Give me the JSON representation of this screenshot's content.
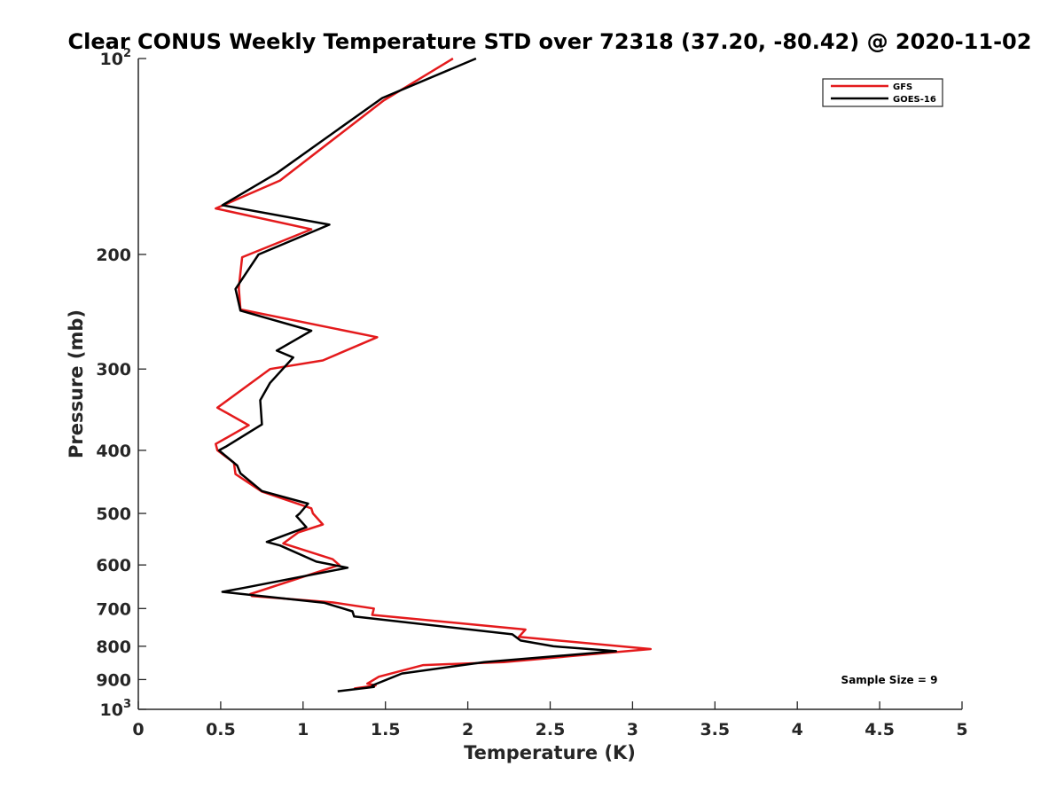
{
  "chart_data": {
    "type": "line",
    "title": "Clear CONUS Weekly Temperature STD over 72318 (37.20, -80.42) @ 2020-11-02",
    "xlabel": "Temperature (K)",
    "ylabel": "Pressure (mb)",
    "xlim": [
      0,
      5
    ],
    "ylim": [
      100,
      1000
    ],
    "y_scale": "log",
    "y_reversed": true,
    "x_ticks": [
      "0",
      "0.5",
      "1",
      "1.5",
      "2",
      "2.5",
      "3",
      "3.5",
      "4",
      "4.5",
      "5"
    ],
    "y_ticks": [
      {
        "value": 100,
        "label": "10",
        "exp": "2"
      },
      {
        "value": 200,
        "label": "200"
      },
      {
        "value": 300,
        "label": "300"
      },
      {
        "value": 400,
        "label": "400"
      },
      {
        "value": 500,
        "label": "500"
      },
      {
        "value": 600,
        "label": "600"
      },
      {
        "value": 700,
        "label": "700"
      },
      {
        "value": 800,
        "label": "800"
      },
      {
        "value": 900,
        "label": "900"
      },
      {
        "value": 1000,
        "label": "10",
        "exp": "3"
      }
    ],
    "grid": false,
    "legend_position": "top-right",
    "annotation": "Sample Size = 9",
    "series": [
      {
        "name": "GFS",
        "color": "#e41a1c",
        "x": [
          1.91,
          1.49,
          0.86,
          0.47,
          1.05,
          0.63,
          0.61,
          0.62,
          1.45,
          1.12,
          0.8,
          0.48,
          0.67,
          0.47,
          0.48,
          0.58,
          0.59,
          0.75,
          1.05,
          1.06,
          1.12,
          0.97,
          0.88,
          1.18,
          1.22,
          0.68,
          0.69,
          1.18,
          1.43,
          1.42,
          2.35,
          2.31,
          3.11,
          2.22,
          1.73,
          1.46,
          1.39,
          1.44,
          1.31
        ],
        "y": [
          100,
          116,
          154,
          170,
          183,
          202,
          225,
          243,
          268,
          291,
          300,
          344,
          366,
          391,
          400,
          418,
          435,
          463,
          491,
          500,
          520,
          535,
          556,
          588,
          600,
          665,
          670,
          685,
          700,
          716,
          754,
          774,
          808,
          846,
          855,
          891,
          913,
          919,
          929
        ]
      },
      {
        "name": "GOES-16",
        "color": "#000000",
        "x": [
          2.05,
          1.48,
          0.84,
          0.51,
          1.16,
          0.73,
          0.59,
          0.62,
          1.05,
          0.84,
          0.94,
          0.8,
          0.74,
          0.75,
          0.53,
          0.49,
          0.6,
          0.62,
          0.75,
          1.03,
          0.98,
          0.96,
          1.02,
          0.78,
          0.86,
          1.08,
          1.27,
          0.65,
          0.51,
          1.13,
          1.3,
          1.31,
          2.27,
          2.32,
          2.52,
          2.9,
          2.1,
          1.6,
          1.42,
          1.43,
          1.21
        ],
        "y": [
          100,
          115,
          150,
          168,
          180,
          200,
          226,
          244,
          262,
          281,
          288,
          315,
          335,
          365,
          395,
          400,
          422,
          434,
          462,
          483,
          500,
          505,
          525,
          553,
          560,
          593,
          606,
          650,
          660,
          686,
          707,
          720,
          767,
          784,
          800,
          814,
          846,
          881,
          919,
          924,
          938
        ]
      }
    ]
  }
}
